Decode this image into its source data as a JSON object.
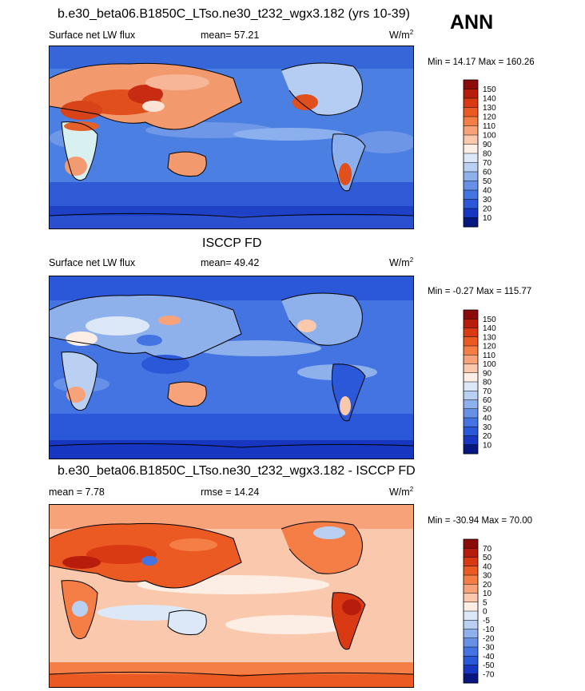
{
  "season": "ANN",
  "panels": [
    {
      "title": "b.e30_beta06.B1850C_LTso.ne30_t232_wgx3.182 (yrs 10-39)",
      "left_label": "Surface net LW flux",
      "mid_label": "mean=  57.21",
      "units_base": "W/m",
      "units_exp": "2",
      "minmax": "Min =  14.17 Max = 160.26"
    },
    {
      "title": "ISCCP FD",
      "left_label": "Surface net LW flux",
      "mid_label": "mean=  49.42",
      "units_base": "W/m",
      "units_exp": "2",
      "minmax": "Min =  -0.27 Max = 115.77"
    },
    {
      "title": "b.e30_beta06.B1850C_LTso.ne30_t232_wgx3.182 - ISCCP FD",
      "left_label": "mean =   7.78",
      "mid_label": "rmse =  14.24",
      "units_base": "W/m",
      "units_exp": "2",
      "minmax": "Min = -30.94 Max =  70.00"
    }
  ],
  "chart_data": [
    {
      "type": "heatmap",
      "title": "b.e30_beta06.B1850C_LTso.ne30_t232_wgx3.182 (yrs 10-39)",
      "variable": "Surface net LW flux",
      "mean": 57.21,
      "min": 14.17,
      "max": 160.26,
      "units": "W/m2",
      "colorbar_levels": [
        "150",
        "140",
        "130",
        "120",
        "110",
        "100",
        "90",
        "80",
        "70",
        "60",
        "50",
        "40",
        "30",
        "20",
        "10"
      ],
      "colorbar_colors": [
        "#8b0a0a",
        "#b81c0c",
        "#d93a14",
        "#ea5a22",
        "#f47e45",
        "#f8a27a",
        "#fac9ad",
        "#fdeee5",
        "#dce8f7",
        "#b9d0f2",
        "#8eb1ec",
        "#6791e6",
        "#4474e2",
        "#2a58d8",
        "#1736c1",
        "#081780"
      ]
    },
    {
      "type": "heatmap",
      "title": "ISCCP FD",
      "variable": "Surface net LW flux",
      "mean": 49.42,
      "min": -0.27,
      "max": 115.77,
      "units": "W/m2",
      "colorbar_levels": [
        "150",
        "140",
        "130",
        "120",
        "110",
        "100",
        "90",
        "80",
        "70",
        "60",
        "50",
        "40",
        "30",
        "20",
        "10"
      ],
      "colorbar_colors": [
        "#8b0a0a",
        "#b81c0c",
        "#d93a14",
        "#ea5a22",
        "#f47e45",
        "#f8a27a",
        "#fac9ad",
        "#fdeee5",
        "#dce8f7",
        "#b9d0f2",
        "#8eb1ec",
        "#6791e6",
        "#4474e2",
        "#2a58d8",
        "#1736c1",
        "#081780"
      ]
    },
    {
      "type": "heatmap",
      "title": "b.e30_beta06.B1850C_LTso.ne30_t232_wgx3.182 - ISCCP FD",
      "mean": 7.78,
      "rmse": 14.24,
      "min": -30.94,
      "max": 70.0,
      "units": "W/m2",
      "colorbar_levels": [
        "70",
        "50",
        "40",
        "30",
        "20",
        "10",
        "5",
        "0",
        "-5",
        "-10",
        "-20",
        "-30",
        "-40",
        "-50",
        "-70"
      ],
      "colorbar_colors": [
        "#8b0a0a",
        "#b81c0c",
        "#d93a14",
        "#ea5a22",
        "#f47e45",
        "#f8a27a",
        "#fac9ad",
        "#fdeee5",
        "#dce8f7",
        "#b9d0f2",
        "#8eb1ec",
        "#6791e6",
        "#4474e2",
        "#2a58d8",
        "#1736c1",
        "#081780"
      ]
    }
  ]
}
